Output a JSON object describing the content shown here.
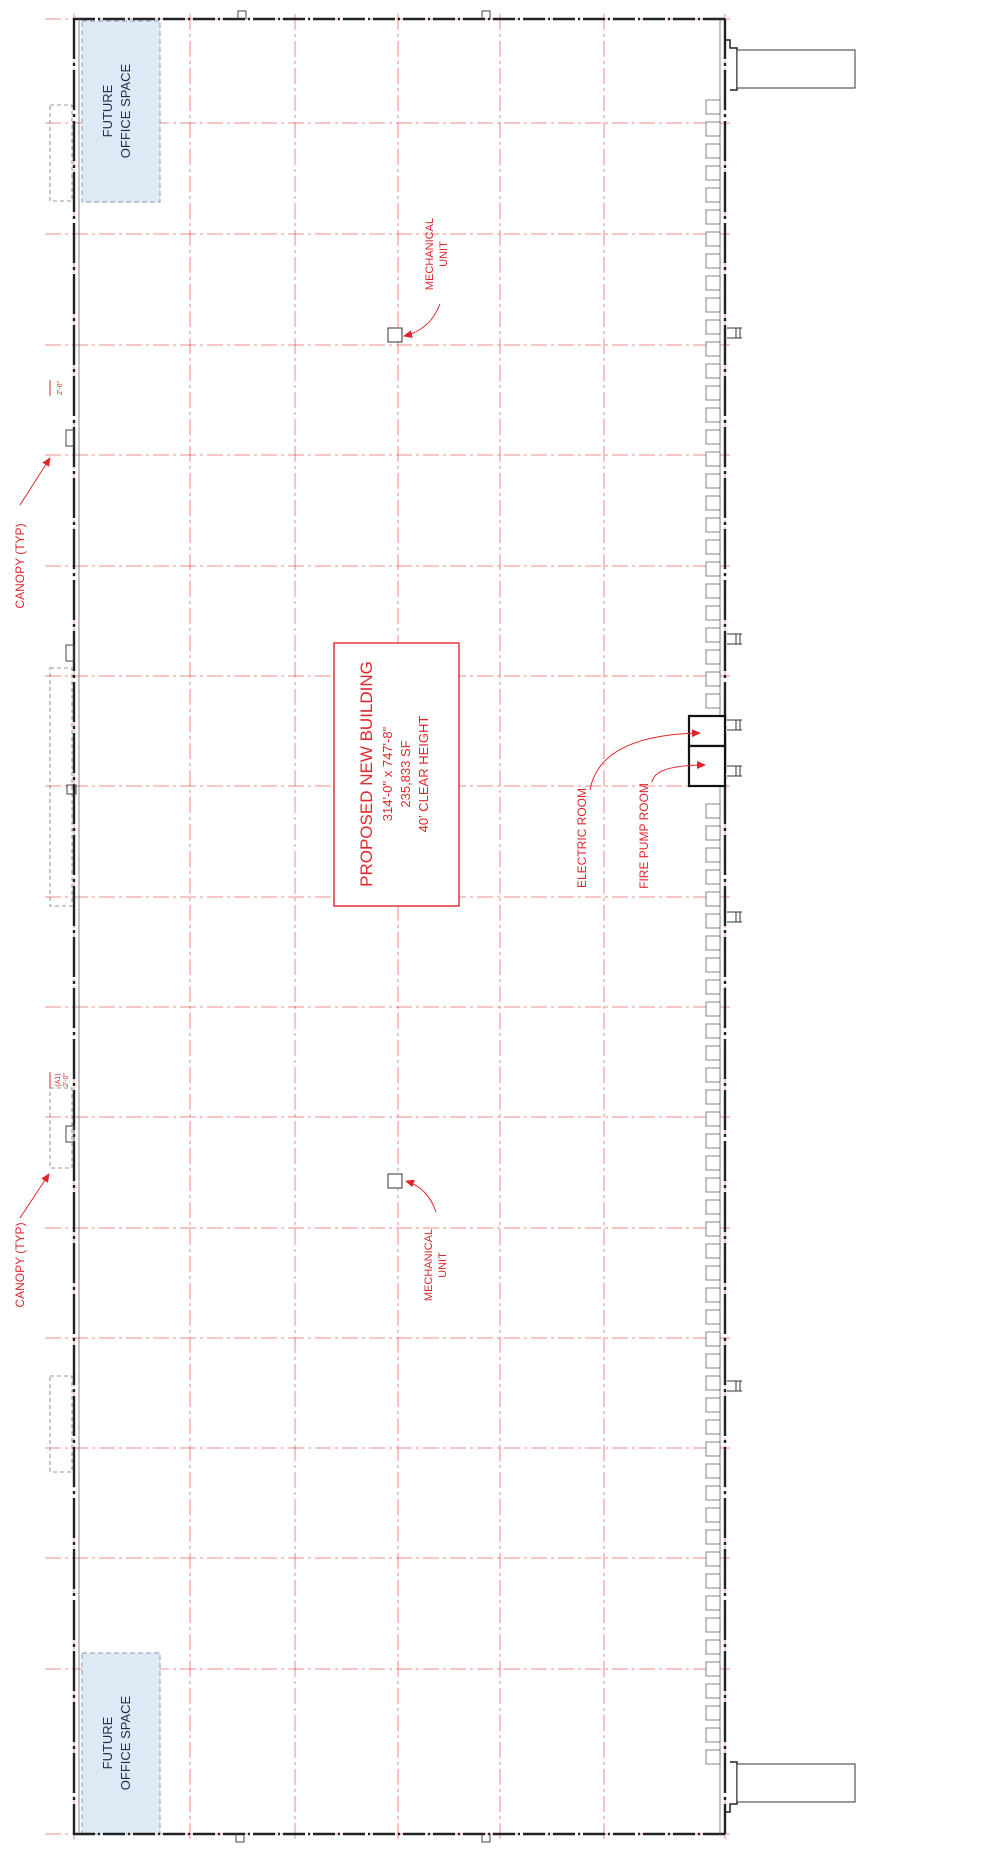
{
  "building": {
    "title": "PROPOSED NEW BUILDING",
    "dimensions": "314'-0\" x 747'-8\"",
    "area": "235,833 SF",
    "clear_height": "40' CLEAR HEIGHT"
  },
  "offices": {
    "line1": "FUTURE",
    "line2": "OFFICE SPACE"
  },
  "labels": {
    "mechanical_line1": "MECHANICAL",
    "mechanical_line2": "UNIT",
    "canopy": "CANOPY (TYP)",
    "electric_room": "ELECTRIC ROOM",
    "fire_pump_room": "FIRE PUMP ROOM",
    "dim_2ft": "2'-0\"",
    "tag_a1": "(A1)"
  },
  "colors": {
    "annotation": "#e0262c",
    "wall": "#222222",
    "office_fill": "#dde9f4",
    "office_stroke": "#7f9bb8",
    "grid": "#e0262c"
  }
}
